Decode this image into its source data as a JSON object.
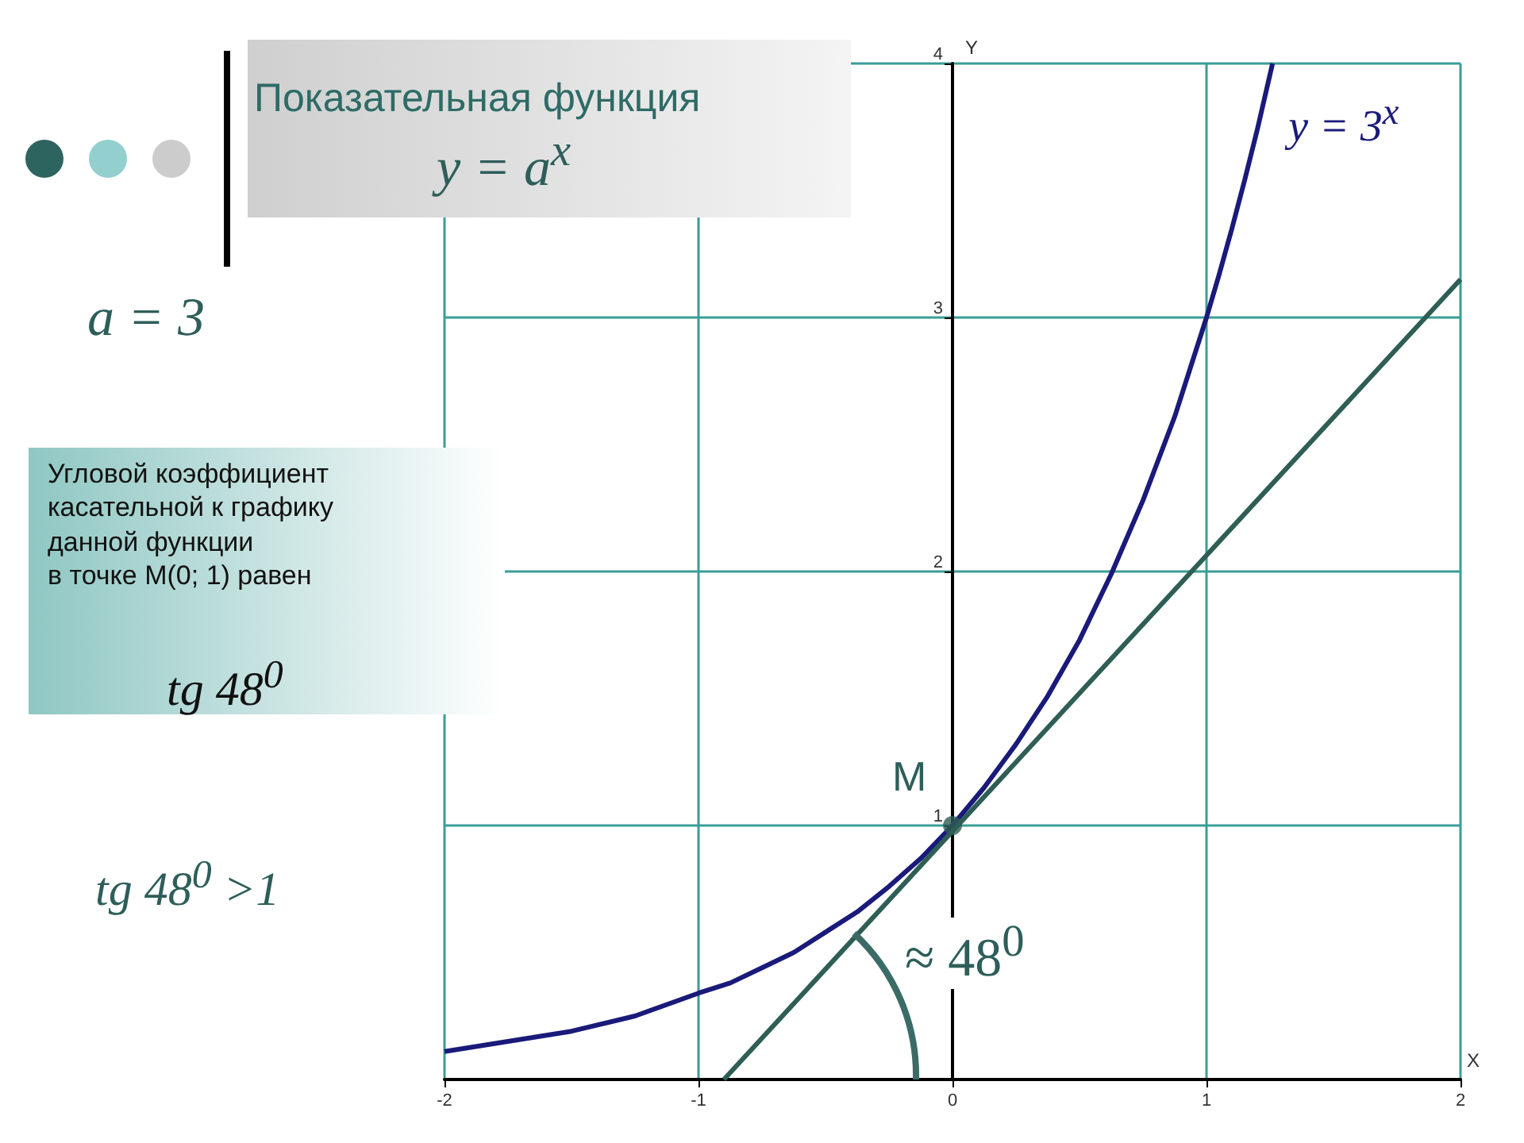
{
  "chart_data": {
    "type": "line",
    "title": "Показательная функция",
    "subtitle": "y = a$^{x}$",
    "xlabel": "X",
    "ylabel": "Y",
    "xlim": [
      -2,
      2
    ],
    "ylim": [
      0,
      4
    ],
    "xticks": [
      -2,
      -1,
      0,
      1,
      2
    ],
    "yticks": [
      {
        "value": 0,
        "label": null
      },
      1,
      2,
      3,
      4
    ],
    "grid": true,
    "marker": "none",
    "series": [
      {
        "name": "y = 3$^{x}$",
        "color": "#1a1a7a",
        "x": [
          -2,
          -1.75,
          -1.5,
          -1.25,
          -1,
          -0.875,
          -0.75,
          -0.625,
          -0.5,
          -0.375,
          -0.25,
          -0.125,
          0,
          0.125,
          0.25,
          0.375,
          0.5,
          0.625,
          0.75,
          0.875,
          1,
          1.05,
          1.1,
          1.15,
          1.2,
          1.26
        ],
        "values": [
          0.11,
          0.15,
          0.19,
          0.25,
          0.34,
          0.38,
          0.44,
          0.5,
          0.58,
          0.66,
          0.76,
          0.87,
          1,
          1.15,
          1.32,
          1.51,
          1.73,
          1.99,
          2.28,
          2.61,
          3,
          3.17,
          3.35,
          3.54,
          3.74,
          4
        ]
      },
      {
        "color": "#2e5e55",
        "x": [
          -0.9,
          2
        ],
        "values": [
          0,
          3.15
        ]
      },
      {
        "type": "scatter",
        "marker": "circle",
        "color": "#2e5e55",
        "x": [
          0
        ],
        "values": [
          1
        ]
      }
    ],
    "annotations": [
      "a = 3",
      "Угловой коэффициент\nкасательной к графику\nданной функции\nв точке M(0; 1) равен",
      "tg 48$^{0}$",
      "tg 48$^{0}$ >1",
      "≈ 48$^{0}$",
      {
        "text": "M",
        "x": 0,
        "y": 1
      }
    ]
  }
}
